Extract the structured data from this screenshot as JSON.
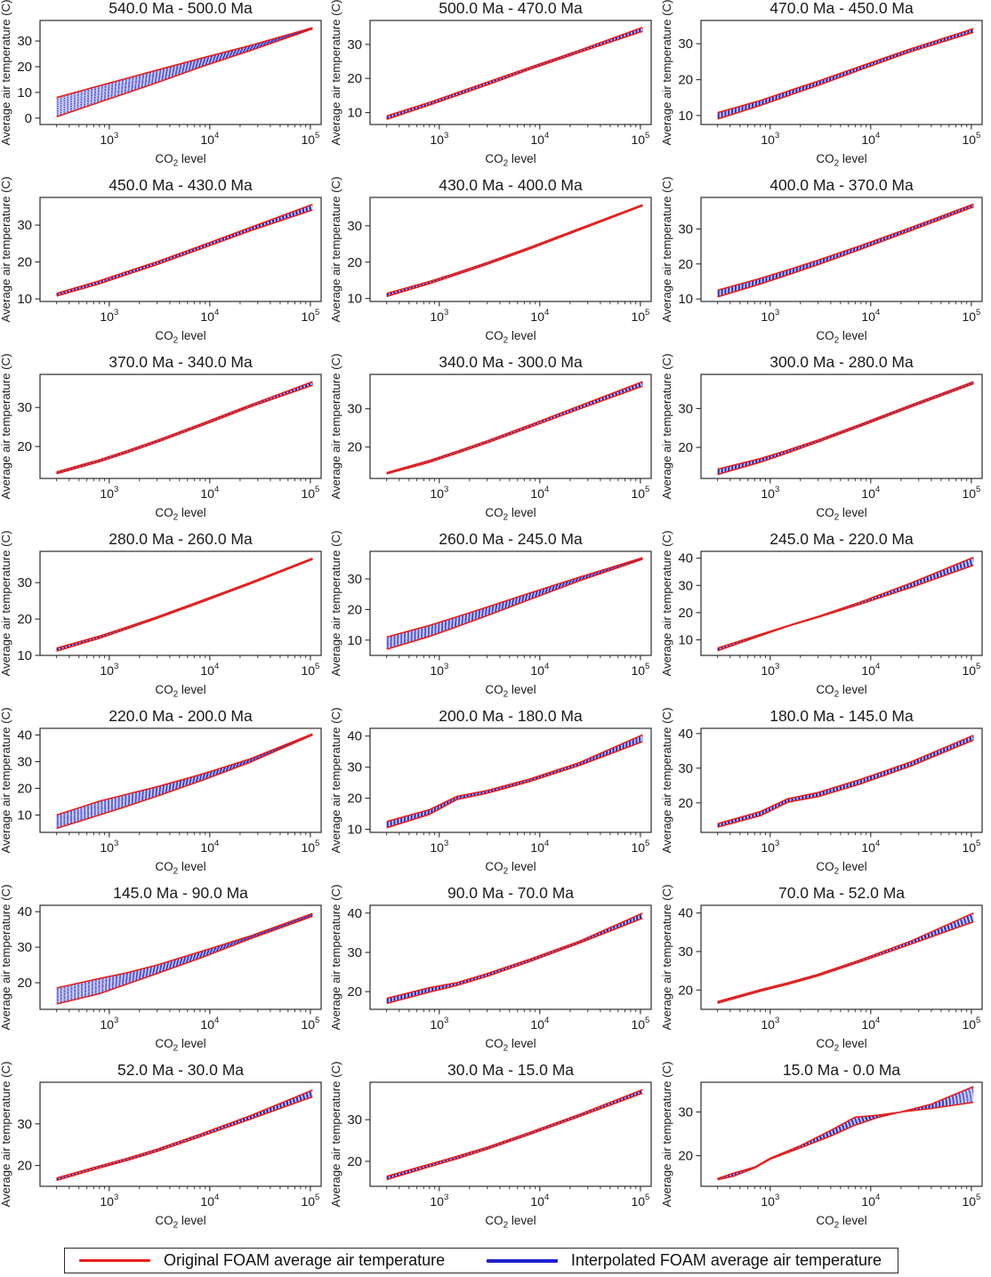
{
  "figure": {
    "background": "#ffffff",
    "axis_color": "#2b2b2b",
    "original_color": "#e3211c",
    "interpolated_color": "#1f1fcc",
    "band_fill": "rgba(100,110,230,0.28)"
  },
  "legend": {
    "items": [
      {
        "label": "Original FOAM average air temperature",
        "color": "#e3211c"
      },
      {
        "label": "Interpolated FOAM average air temperature",
        "color": "#1f1fcc"
      }
    ]
  },
  "chart_data": {
    "type": "line",
    "grid": "off",
    "xscale": "log",
    "xlabel": "CO2 level",
    "ylabel": "Average air temperature (C)",
    "xlim": [
      205,
      128000
    ],
    "xticks": [
      1000,
      10000,
      100000
    ],
    "legend_position": "bottom",
    "series_names": [
      "Original FOAM average air temperature (band edges)",
      "Interpolated FOAM average air temperature (fan between edges)"
    ],
    "interp_lines": 12,
    "shared_x": [
      300,
      800,
      1500,
      3000,
      8000,
      25000,
      105000
    ],
    "plots": [
      {
        "title": "540.0 Ma - 500.0 Ma",
        "ylim": [
          -2.5,
          38.0
        ],
        "yticks": [
          0,
          10,
          20,
          30
        ],
        "red_a": [
          8.0,
          12.6,
          15.5,
          18.7,
          23.2,
          28.2,
          35.2
        ],
        "red_b": [
          0.5,
          6.2,
          9.8,
          13.8,
          19.8,
          26.2,
          34.7
        ]
      },
      {
        "title": "500.0 Ma - 470.0 Ma",
        "ylim": [
          6.5,
          37.0
        ],
        "yticks": [
          10,
          20,
          30
        ],
        "red_a": [
          9.0,
          13.0,
          15.8,
          18.9,
          23.3,
          28.3,
          35.0
        ],
        "red_b": [
          8.0,
          12.2,
          15.0,
          18.1,
          22.7,
          27.7,
          33.8
        ]
      },
      {
        "title": "470.0 Ma - 450.0 Ma",
        "ylim": [
          7.5,
          36.5
        ],
        "yticks": [
          10,
          20,
          30
        ],
        "red_a": [
          10.8,
          14.2,
          16.8,
          19.6,
          23.8,
          28.6,
          34.2
        ],
        "red_b": [
          9.0,
          12.8,
          15.5,
          18.4,
          22.8,
          27.8,
          33.2
        ]
      },
      {
        "title": "450.0 Ma - 430.0 Ma",
        "ylim": [
          9.3,
          37.5
        ],
        "yticks": [
          10,
          20,
          30
        ],
        "red_a": [
          11.5,
          14.9,
          17.4,
          20.1,
          24.3,
          29.3,
          35.6
        ],
        "red_b": [
          10.8,
          14.1,
          16.6,
          19.3,
          23.5,
          28.4,
          34.1
        ]
      },
      {
        "title": "430.0 Ma - 400.0 Ma",
        "ylim": [
          9.2,
          37.8
        ],
        "yticks": [
          10,
          20,
          30
        ],
        "red_a": [
          11.4,
          14.7,
          17.1,
          19.9,
          24.1,
          29.3,
          35.8
        ],
        "red_b": [
          10.6,
          14.1,
          16.6,
          19.4,
          23.7,
          28.9,
          35.5
        ]
      },
      {
        "title": "400.0 Ma - 370.0 Ma",
        "ylim": [
          9.3,
          39.0
        ],
        "yticks": [
          10,
          20,
          30
        ],
        "red_a": [
          12.5,
          15.9,
          18.3,
          21.1,
          25.3,
          30.4,
          37.1
        ],
        "red_b": [
          10.6,
          14.3,
          16.9,
          19.8,
          24.2,
          29.5,
          36.3
        ]
      },
      {
        "title": "370.0 Ma - 340.0 Ma",
        "ylim": [
          11.8,
          38.5
        ],
        "yticks": [
          20,
          30
        ],
        "red_a": [
          13.5,
          16.6,
          18.9,
          21.6,
          25.7,
          30.6,
          36.6
        ],
        "red_b": [
          13.0,
          16.1,
          18.4,
          21.1,
          25.2,
          30.1,
          35.7
        ]
      },
      {
        "title": "340.0 Ma - 300.0 Ma",
        "ylim": [
          11.8,
          39.0
        ],
        "yticks": [
          20,
          30
        ],
        "red_a": [
          13.3,
          16.5,
          18.9,
          21.6,
          25.8,
          30.8,
          37.1
        ],
        "red_b": [
          13.0,
          16.0,
          18.4,
          21.1,
          25.2,
          30.0,
          35.9
        ]
      },
      {
        "title": "300.0 Ma - 280.0 Ma",
        "ylim": [
          12.0,
          38.8
        ],
        "yticks": [
          20,
          30
        ],
        "red_a": [
          14.4,
          17.1,
          19.3,
          21.9,
          26.0,
          30.9,
          36.9
        ],
        "red_b": [
          13.0,
          16.2,
          18.6,
          21.4,
          25.5,
          30.4,
          36.4
        ]
      },
      {
        "title": "280.0 Ma - 260.0 Ma",
        "ylim": [
          10.0,
          38.6
        ],
        "yticks": [
          10,
          20,
          30
        ],
        "red_a": [
          12.0,
          15.3,
          17.8,
          20.6,
          24.9,
          30.0,
          36.7
        ],
        "red_b": [
          11.2,
          14.7,
          17.3,
          20.2,
          24.5,
          29.6,
          36.4
        ]
      },
      {
        "title": "260.0 Ma - 245.0 Ma",
        "ylim": [
          5.0,
          39.0
        ],
        "yticks": [
          10,
          20,
          30
        ],
        "red_a": [
          11.0,
          14.8,
          17.6,
          20.8,
          25.4,
          30.6,
          36.9
        ],
        "red_b": [
          7.0,
          11.2,
          14.4,
          18.0,
          23.3,
          29.4,
          36.4
        ]
      },
      {
        "title": "245.0 Ma - 220.0 Ma",
        "ylim": [
          4.3,
          42.5
        ],
        "yticks": [
          10,
          20,
          30,
          40
        ],
        "red_a": [
          7.0,
          12.0,
          15.2,
          18.6,
          24.0,
          30.8,
          40.3
        ],
        "red_b": [
          6.0,
          11.5,
          15.0,
          18.3,
          23.2,
          29.2,
          37.4
        ]
      },
      {
        "title": "220.0 Ma - 200.0 Ma",
        "ylim": [
          3.5,
          42.5
        ],
        "yticks": [
          10,
          20,
          30,
          40
        ],
        "red_a": [
          10.0,
          15.2,
          17.8,
          20.6,
          25.1,
          31.0,
          40.4
        ],
        "red_b": [
          5.0,
          10.0,
          13.3,
          17.1,
          22.7,
          29.7,
          40.0
        ]
      },
      {
        "title": "200.0 Ma - 180.0 Ma",
        "ylim": [
          9.0,
          42.5
        ],
        "yticks": [
          10,
          20,
          30,
          40
        ],
        "red_a": [
          12.5,
          16.3,
          20.6,
          22.5,
          26.2,
          31.5,
          40.4
        ],
        "red_b": [
          10.5,
          14.8,
          19.6,
          21.6,
          25.4,
          30.6,
          38.2
        ]
      },
      {
        "title": "180.0 Ma - 145.0 Ma",
        "ylim": [
          11.5,
          41.5
        ],
        "yticks": [
          20,
          30,
          40
        ],
        "red_a": [
          14.0,
          17.5,
          21.2,
          23.0,
          26.8,
          31.8,
          39.5
        ],
        "red_b": [
          13.0,
          16.3,
          20.2,
          21.8,
          25.5,
          30.6,
          38.1
        ]
      },
      {
        "title": "145.0 Ma - 90.0 Ma",
        "ylim": [
          12.5,
          41.8
        ],
        "yticks": [
          20,
          30,
          40
        ],
        "red_a": [
          18.5,
          21.2,
          22.8,
          25.0,
          28.7,
          33.1,
          39.5
        ],
        "red_b": [
          14.0,
          16.9,
          19.6,
          22.6,
          26.9,
          32.3,
          38.7
        ]
      },
      {
        "title": "90.0 Ma - 70.0 Ma",
        "ylim": [
          15.5,
          42.0
        ],
        "yticks": [
          20,
          30,
          40
        ],
        "red_a": [
          18.3,
          21.0,
          22.3,
          24.6,
          28.3,
          32.9,
          40.0
        ],
        "red_b": [
          17.0,
          19.9,
          21.6,
          23.9,
          27.7,
          32.4,
          38.7
        ]
      },
      {
        "title": "70.0 Ma - 52.0 Ma",
        "ylim": [
          15.0,
          42.0
        ],
        "yticks": [
          20,
          30,
          40
        ],
        "red_a": [
          17.0,
          20.1,
          21.9,
          24.1,
          27.9,
          32.7,
          40.0
        ],
        "red_b": [
          16.6,
          19.7,
          21.5,
          23.7,
          27.4,
          31.9,
          37.7
        ]
      },
      {
        "title": "52.0 Ma - 30.0 Ma",
        "ylim": [
          15.0,
          40.0
        ],
        "yticks": [
          20,
          30
        ],
        "red_a": [
          17.0,
          19.9,
          21.7,
          23.9,
          27.5,
          31.9,
          38.1
        ],
        "red_b": [
          16.4,
          19.4,
          21.2,
          23.4,
          26.9,
          31.1,
          36.5
        ]
      },
      {
        "title": "30.0 Ma - 15.0 Ma",
        "ylim": [
          14.0,
          39.0
        ],
        "yticks": [
          20,
          30
        ],
        "red_a": [
          16.4,
          19.3,
          21.2,
          23.4,
          27.0,
          31.3,
          37.2
        ],
        "red_b": [
          15.6,
          18.7,
          20.6,
          22.9,
          26.5,
          30.8,
          36.4
        ]
      },
      {
        "title": "15.0 Ma - 0.0 Ma",
        "ylim": [
          13.0,
          36.8
        ],
        "yticks": [
          20,
          30
        ],
        "x": [
          300,
          430,
          700,
          1000,
          2000,
          4000,
          7000,
          12000,
          20000,
          40000,
          105000
        ],
        "red_a": [
          14.5,
          15.3,
          17.2,
          19.2,
          21.8,
          24.5,
          27.0,
          28.8,
          30.0,
          31.8,
          35.8
        ],
        "red_b": [
          14.8,
          16.0,
          17.4,
          19.4,
          22.3,
          25.8,
          28.8,
          29.3,
          30.0,
          30.8,
          32.2
        ]
      }
    ]
  }
}
